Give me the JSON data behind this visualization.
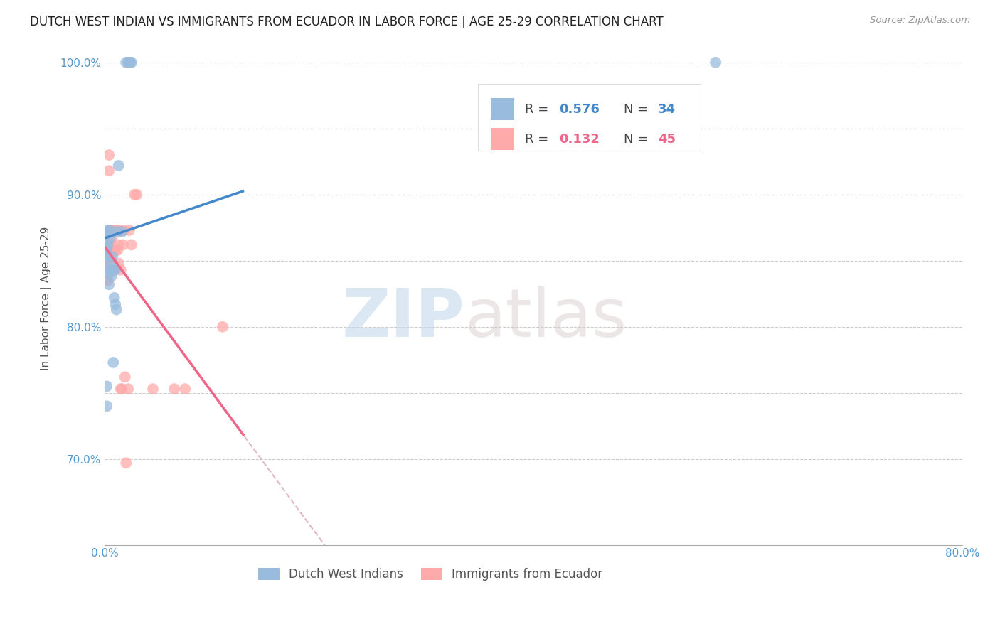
{
  "title": "DUTCH WEST INDIAN VS IMMIGRANTS FROM ECUADOR IN LABOR FORCE | AGE 25-29 CORRELATION CHART",
  "source": "Source: ZipAtlas.com",
  "ylabel": "In Labor Force | Age 25-29",
  "xlim": [
    0.0,
    0.8
  ],
  "ylim": [
    0.635,
    1.008
  ],
  "xticks": [
    0.0,
    0.1,
    0.2,
    0.3,
    0.4,
    0.5,
    0.6,
    0.7,
    0.8
  ],
  "xticklabels": [
    "0.0%",
    "",
    "",
    "",
    "",
    "",
    "",
    "",
    "80.0%"
  ],
  "ytick_positions": [
    0.7,
    0.75,
    0.8,
    0.85,
    0.9,
    0.95,
    1.0
  ],
  "ytick_labels": [
    "70.0%",
    "",
    "80.0%",
    "",
    "90.0%",
    "",
    "100.0%"
  ],
  "color_blue": "#99BBDD",
  "color_pink": "#FFAAAA",
  "color_blue_line": "#4488CC",
  "color_pink_line": "#EE6688",
  "color_dashed": "#DDAABB",
  "watermark_zip": "ZIP",
  "watermark_atlas": "atlas",
  "legend_r1": "0.576",
  "legend_n1": "34",
  "legend_r2": "0.132",
  "legend_n2": "45",
  "blue_x": [
    0.002,
    0.002,
    0.002,
    0.002,
    0.002,
    0.003,
    0.003,
    0.003,
    0.004,
    0.004,
    0.004,
    0.005,
    0.005,
    0.005,
    0.006,
    0.006,
    0.007,
    0.007,
    0.008,
    0.008,
    0.009,
    0.01,
    0.01,
    0.011,
    0.012,
    0.013,
    0.016,
    0.02,
    0.022,
    0.023,
    0.023,
    0.024,
    0.025,
    0.57
  ],
  "blue_y": [
    0.855,
    0.86,
    0.87,
    0.755,
    0.74,
    0.873,
    0.862,
    0.852,
    0.843,
    0.84,
    0.832,
    0.873,
    0.867,
    0.847,
    0.843,
    0.838,
    0.853,
    0.843,
    0.843,
    0.773,
    0.822,
    0.817,
    0.843,
    0.813,
    0.872,
    0.922,
    0.872,
    1.0,
    1.0,
    1.0,
    1.0,
    1.0,
    1.0,
    1.0
  ],
  "pink_x": [
    0.001,
    0.001,
    0.002,
    0.002,
    0.002,
    0.003,
    0.003,
    0.003,
    0.004,
    0.004,
    0.005,
    0.005,
    0.006,
    0.006,
    0.006,
    0.007,
    0.007,
    0.008,
    0.008,
    0.009,
    0.009,
    0.009,
    0.01,
    0.01,
    0.011,
    0.012,
    0.013,
    0.013,
    0.014,
    0.015,
    0.015,
    0.016,
    0.017,
    0.018,
    0.019,
    0.02,
    0.022,
    0.023,
    0.025,
    0.028,
    0.03,
    0.045,
    0.065,
    0.075,
    0.11
  ],
  "pink_y": [
    0.86,
    0.847,
    0.857,
    0.847,
    0.835,
    0.862,
    0.847,
    0.835,
    0.93,
    0.918,
    0.873,
    0.853,
    0.873,
    0.862,
    0.852,
    0.858,
    0.868,
    0.873,
    0.857,
    0.873,
    0.858,
    0.843,
    0.873,
    0.857,
    0.873,
    0.858,
    0.848,
    0.862,
    0.873,
    0.843,
    0.753,
    0.753,
    0.862,
    0.873,
    0.762,
    0.697,
    0.753,
    0.873,
    0.862,
    0.9,
    0.9,
    0.753,
    0.753,
    0.753,
    0.8
  ]
}
